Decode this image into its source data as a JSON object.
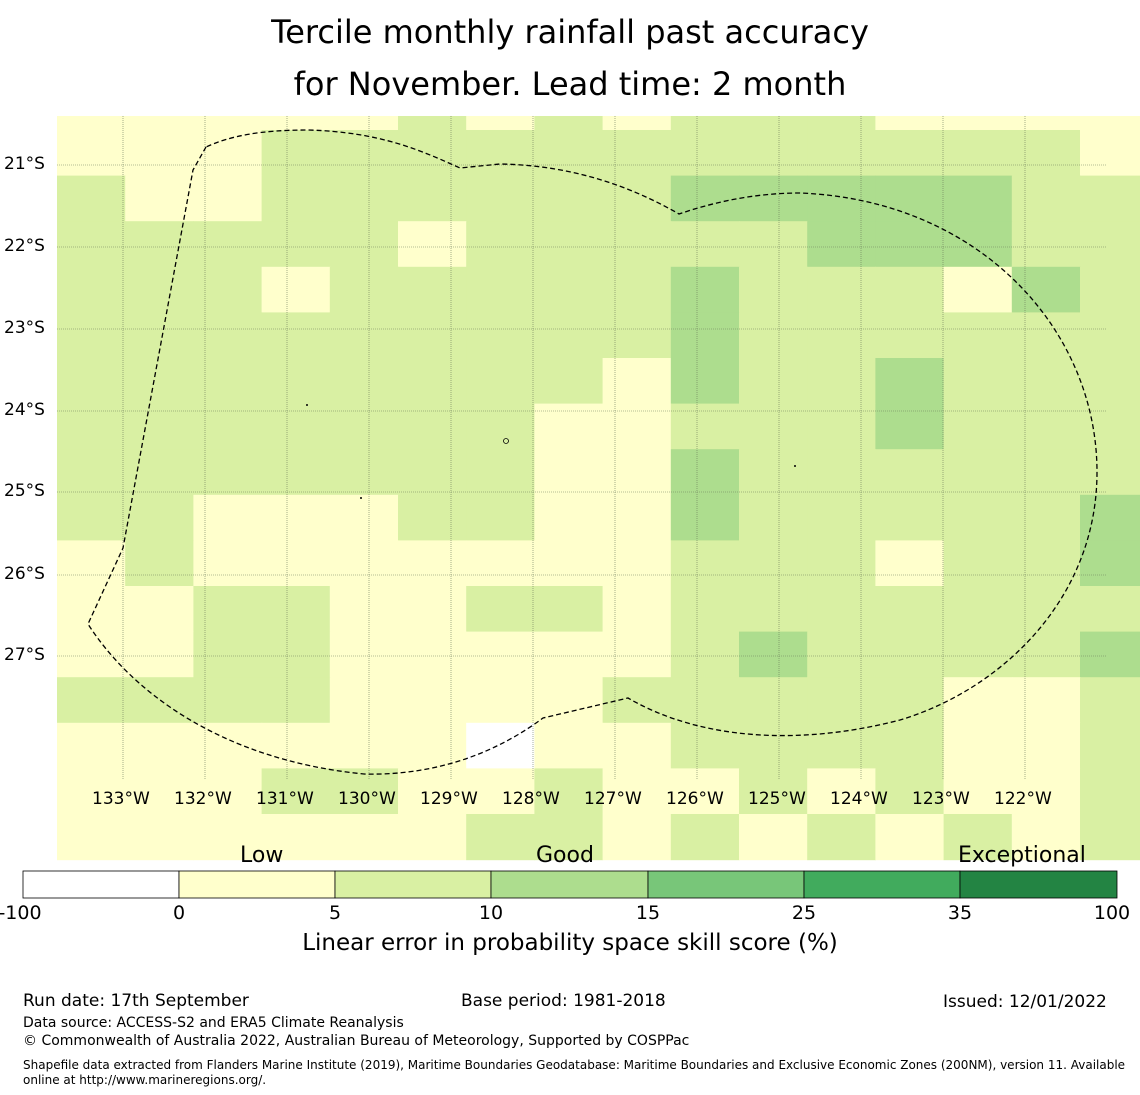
{
  "title": {
    "line1": "Tercile monthly rainfall past accuracy",
    "line2": "for November. Lead time: 2 month"
  },
  "map": {
    "lat_labels": [
      "21°S",
      "22°S",
      "23°S",
      "24°S",
      "25°S",
      "26°S",
      "27°S"
    ],
    "lon_labels": [
      "133°W",
      "132°W",
      "131°W",
      "130°W",
      "129°W",
      "128°W",
      "127°W",
      "126°W",
      "125°W",
      "124°W",
      "123°W",
      "122°W"
    ],
    "grid_codes": [
      "1111121212221111",
      "1112222222222221",
      "2112222223333322",
      "2222212222233322",
      "2221222223222132",
      "2222222223222222",
      "2222222213223222",
      "2222222112223222",
      "2222222113222222",
      "2211122113222223",
      "1211111112221223",
      "1122112212222222",
      "1122111112322223",
      "2222111122222112",
      "1111110112222112",
      "1112211211212112",
      "1111112212121212"
    ],
    "colors": {
      "0": "#ffffff",
      "1": "#ffffcc",
      "2": "#d9f0a3",
      "3": "#addd8e"
    }
  },
  "colorbar": {
    "words": {
      "low": "Low",
      "good": "Good",
      "exceptional": "Exceptional"
    },
    "ticks": [
      "-100",
      "0",
      "5",
      "10",
      "15",
      "25",
      "35",
      "100"
    ],
    "colors": [
      "#ffffff",
      "#ffffcc",
      "#d9f0a3",
      "#addd8e",
      "#78c679",
      "#41ab5d",
      "#238443"
    ],
    "label": "Linear error in probability space skill score (%)"
  },
  "footer": {
    "run_date": "Run date: 17th September",
    "base_period": "Base period: 1981-2018",
    "issued": "Issued: 12/01/2022",
    "data_source": "Data source: ACCESS-S2 and ERA5 Climate Reanalysis",
    "copyright": "© Commonwealth of Australia 2022, Australian Bureau of Meteorology, Supported by COSPPac",
    "shapefile": "Shapefile data extracted from Flanders Marine Institute (2019), Maritime Boundaries Geodatabase: Maritime Boundaries and Exclusive Economic Zones (200NM), version 11. Available online at http://www.marineregions.org/."
  }
}
